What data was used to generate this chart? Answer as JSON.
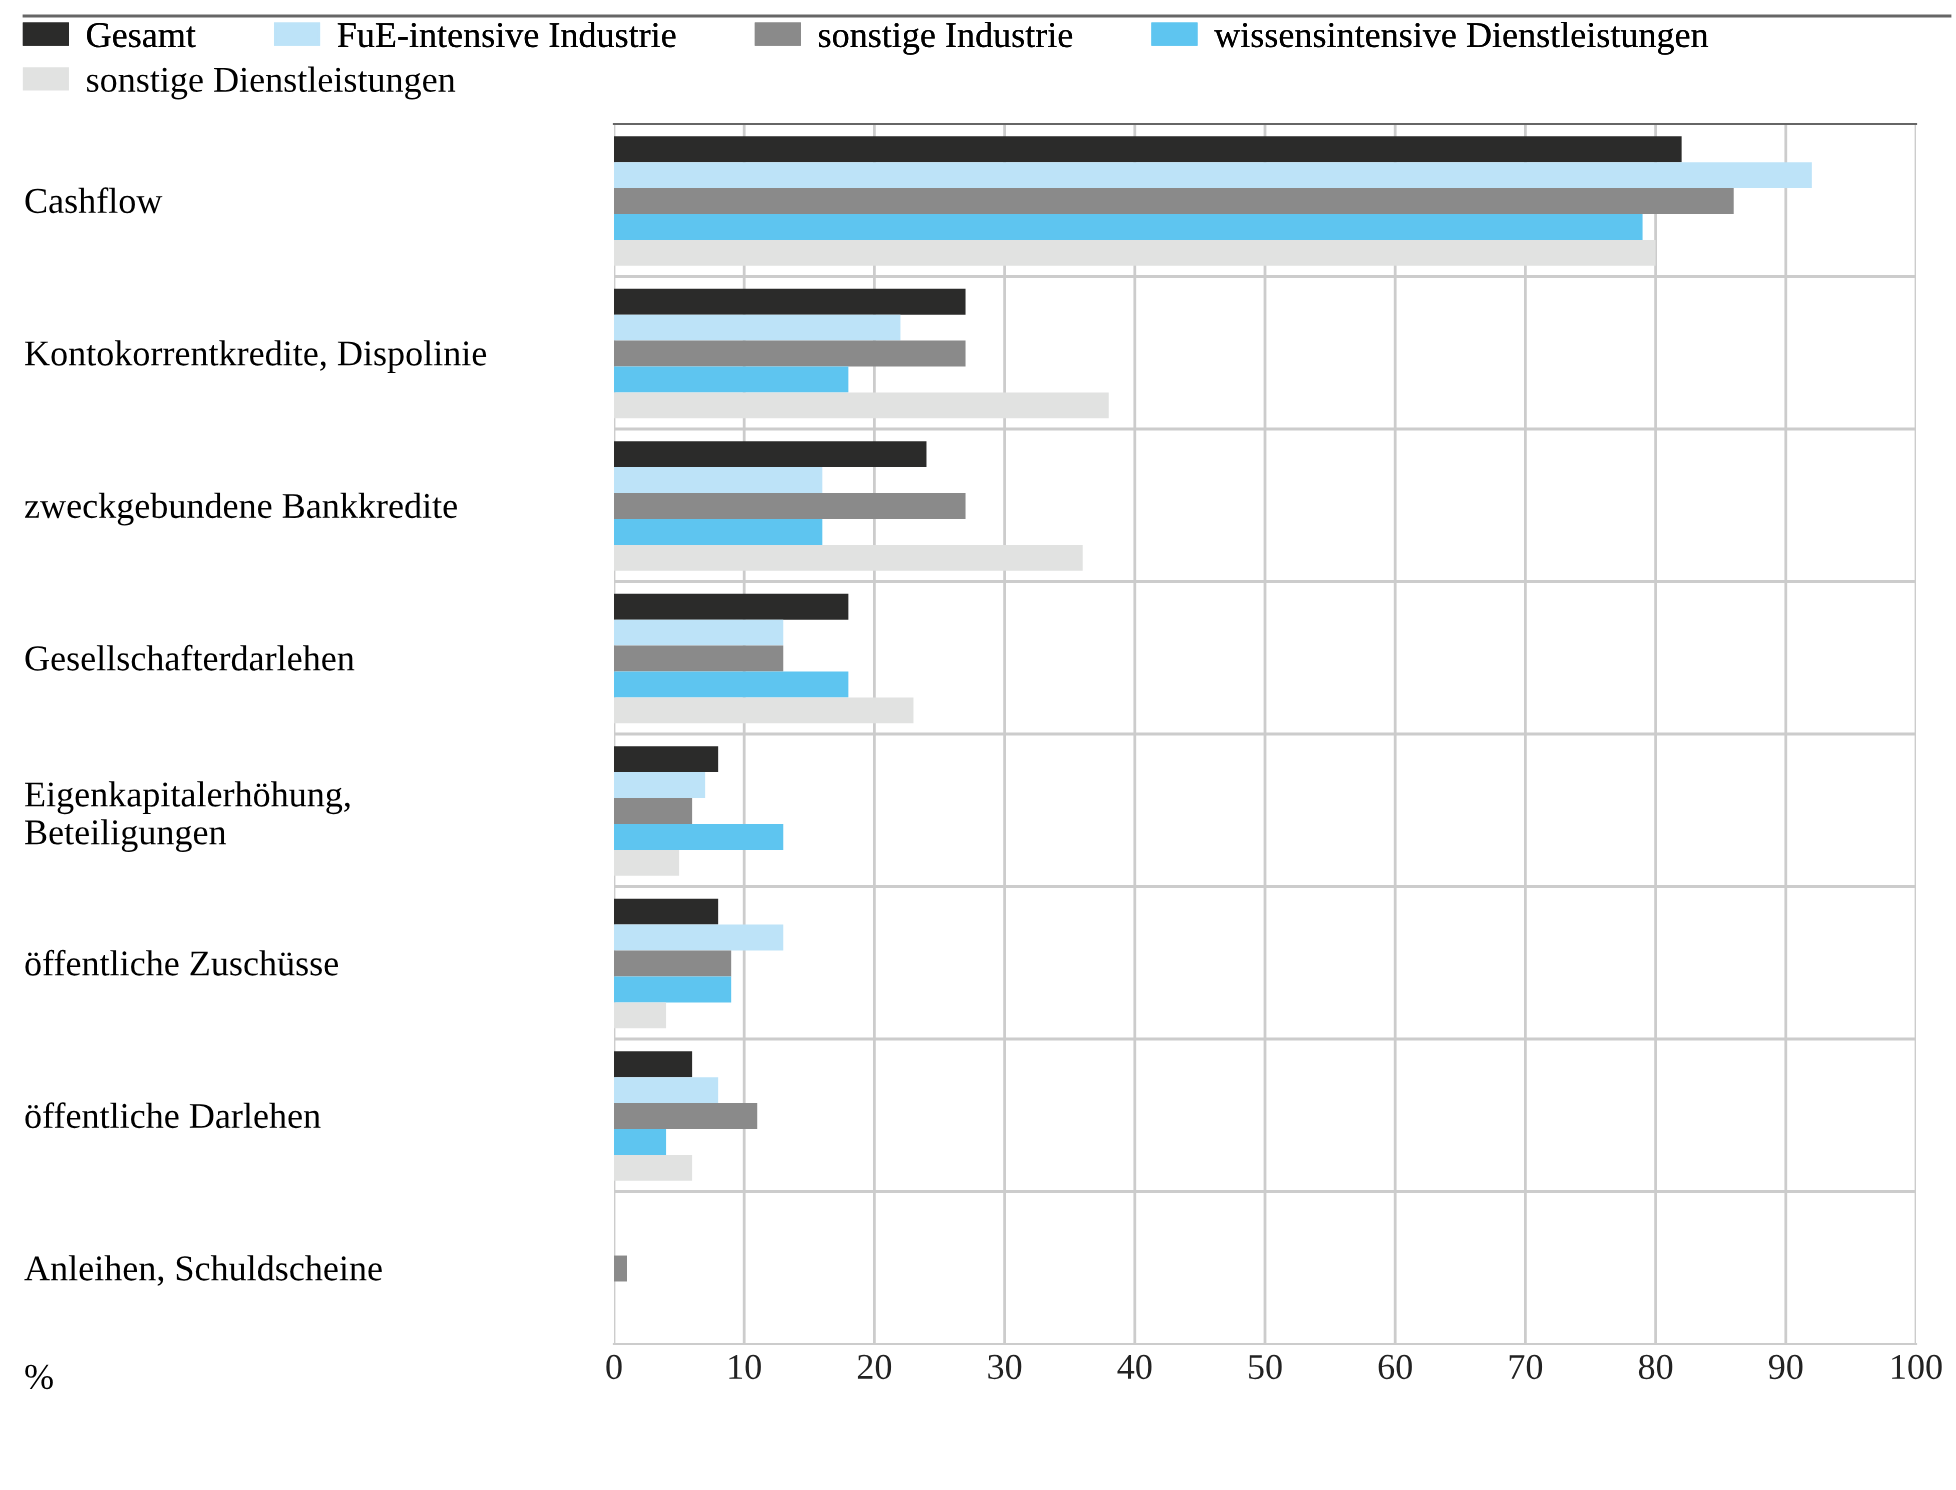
{
  "chart_data": {
    "type": "bar",
    "orientation": "horizontal",
    "annotations": [
      "%"
    ],
    "categories": [
      "Cashflow",
      "Kontokorrentkredite, Dispolinie",
      "zweckgebundene Bankkredite",
      "Gesellschafterdarlehen",
      "Eigenkapitalerhöhung,\nBeteiligungen",
      "öffentliche Zuschüsse",
      "öffentliche Darlehen",
      "Anleihen, Schuldscheine"
    ],
    "series": [
      {
        "name": "Gesamt",
        "color": "#2b2b2a",
        "values": [
          82,
          27,
          24,
          18,
          8,
          8,
          6,
          0
        ]
      },
      {
        "name": "FuE-intensive Industrie",
        "color": "#bde3f8",
        "values": [
          92,
          22,
          16,
          13,
          7,
          13,
          8,
          0
        ]
      },
      {
        "name": "sonstige Industrie",
        "color": "#8a8a8a",
        "values": [
          86,
          27,
          27,
          13,
          6,
          9,
          11,
          1
        ]
      },
      {
        "name": "wissensintensive Dienstleistungen",
        "color": "#5ec5f0",
        "values": [
          79,
          18,
          16,
          18,
          13,
          9,
          4,
          0
        ]
      },
      {
        "name": "sonstige Dienstleistungen",
        "color": "#e1e2e1",
        "values": [
          80,
          38,
          36,
          23,
          5,
          4,
          6,
          0
        ]
      }
    ],
    "xlim": [
      0,
      100
    ],
    "xticks": [
      0,
      10,
      20,
      30,
      40,
      50,
      60,
      70,
      80,
      90,
      100
    ],
    "grid": true,
    "legend": "top"
  }
}
